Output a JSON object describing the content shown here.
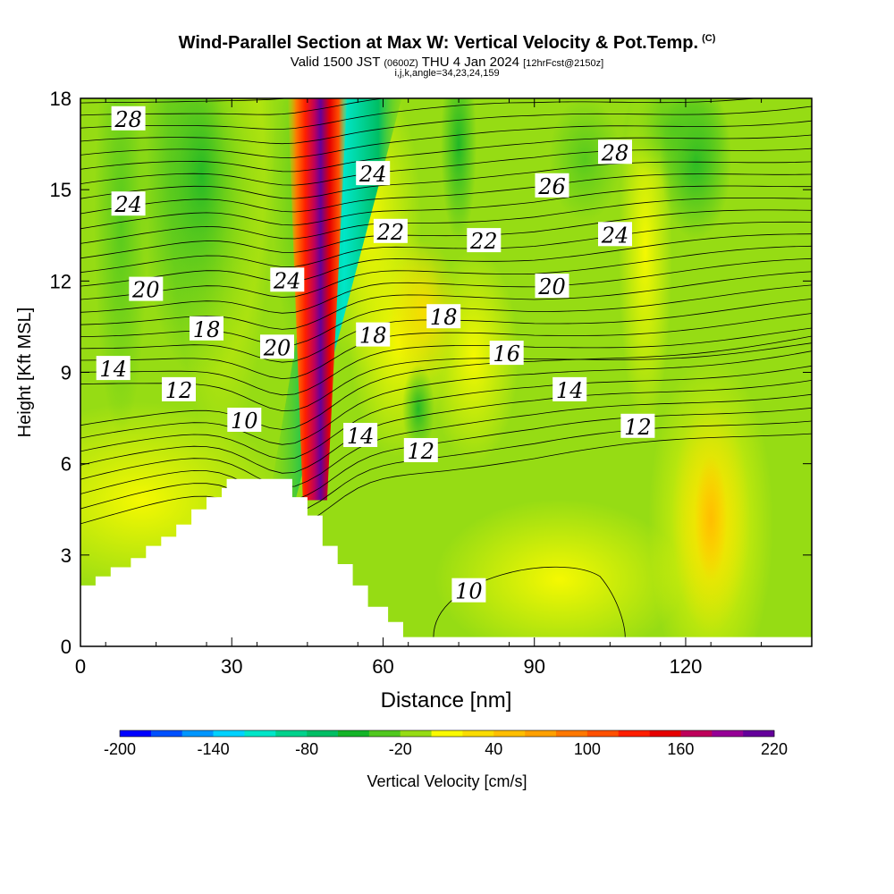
{
  "title": {
    "main": "Wind-Parallel Section at Max W: Vertical Velocity & Pot.Temp.",
    "copyright": "(C)",
    "valid_prefix": "Valid 1500 JST",
    "valid_utc": "(0600Z)",
    "valid_date": "THU 4 Jan 2024",
    "forecast": "[12hrFcst@2150z]",
    "indices": "i,j,k,angle=34,23,24,159"
  },
  "chart_data": {
    "type": "heatmap",
    "xlabel": "Distance [nm]",
    "ylabel": "Height [Kft MSL]",
    "xlim": [
      0,
      145
    ],
    "ylim": [
      0,
      18
    ],
    "xticks": [
      0,
      30,
      60,
      90,
      120
    ],
    "yticks": [
      0,
      3,
      6,
      9,
      12,
      15,
      18
    ],
    "colorbar": {
      "label": "Vertical Velocity [cm/s]",
      "min": -200,
      "max": 220,
      "step": 20,
      "tick_values": [
        -200,
        -140,
        -80,
        -20,
        40,
        100,
        160,
        220
      ],
      "colors": [
        "#0000ff",
        "#0050ff",
        "#0096ff",
        "#00d2ff",
        "#00e6c8",
        "#00d28c",
        "#00be64",
        "#14b428",
        "#50c81e",
        "#96dc14",
        "#fafa00",
        "#fadc00",
        "#ffbe00",
        "#ffa000",
        "#ff7800",
        "#ff5000",
        "#ff1e00",
        "#e60000",
        "#be005a",
        "#960096",
        "#64009b"
      ]
    },
    "terrain_profile": [
      [
        0,
        2
      ],
      [
        3,
        2
      ],
      [
        3,
        2.3
      ],
      [
        6,
        2.3
      ],
      [
        6,
        2.6
      ],
      [
        10,
        2.6
      ],
      [
        10,
        2.9
      ],
      [
        13,
        2.9
      ],
      [
        13,
        3.3
      ],
      [
        16,
        3.3
      ],
      [
        16,
        3.6
      ],
      [
        19,
        3.6
      ],
      [
        19,
        4.0
      ],
      [
        22,
        4.0
      ],
      [
        22,
        4.5
      ],
      [
        25,
        4.5
      ],
      [
        25,
        4.9
      ],
      [
        28,
        4.9
      ],
      [
        28,
        5.2
      ],
      [
        29,
        5.2
      ],
      [
        29,
        5.5
      ],
      [
        42,
        5.5
      ],
      [
        42,
        4.9
      ],
      [
        45,
        4.9
      ],
      [
        45,
        4.3
      ],
      [
        48,
        4.3
      ],
      [
        48,
        3.3
      ],
      [
        51,
        3.3
      ],
      [
        51,
        2.7
      ],
      [
        54,
        2.7
      ],
      [
        54,
        2.0
      ],
      [
        57,
        2.0
      ],
      [
        57,
        1.3
      ],
      [
        61,
        1.3
      ],
      [
        61,
        0.8
      ],
      [
        64,
        0.8
      ],
      [
        64,
        0.3
      ],
      [
        145,
        0.3
      ]
    ],
    "theta_contour_labels": [
      {
        "text": "28",
        "x": 9.5,
        "y": 17.3
      },
      {
        "text": "24",
        "x": 9.5,
        "y": 14.5
      },
      {
        "text": "20",
        "x": 13,
        "y": 11.7
      },
      {
        "text": "18",
        "x": 25,
        "y": 10.4
      },
      {
        "text": "14",
        "x": 6.5,
        "y": 9.1
      },
      {
        "text": "12",
        "x": 19.5,
        "y": 8.4
      },
      {
        "text": "10",
        "x": 32.5,
        "y": 7.4
      },
      {
        "text": "24",
        "x": 41,
        "y": 12.0
      },
      {
        "text": "20",
        "x": 39,
        "y": 9.8
      },
      {
        "text": "24",
        "x": 58,
        "y": 15.5
      },
      {
        "text": "22",
        "x": 61.5,
        "y": 13.6
      },
      {
        "text": "18",
        "x": 58,
        "y": 10.2
      },
      {
        "text": "14",
        "x": 55.5,
        "y": 6.9
      },
      {
        "text": "12",
        "x": 67.5,
        "y": 6.4
      },
      {
        "text": "22",
        "x": 80,
        "y": 13.3
      },
      {
        "text": "18",
        "x": 72,
        "y": 10.8
      },
      {
        "text": "16",
        "x": 84.5,
        "y": 9.6
      },
      {
        "text": "14",
        "x": 97,
        "y": 8.4
      },
      {
        "text": "10",
        "x": 77,
        "y": 1.8
      },
      {
        "text": "26",
        "x": 93.5,
        "y": 15.1
      },
      {
        "text": "20",
        "x": 93.5,
        "y": 11.8
      },
      {
        "text": "28",
        "x": 106,
        "y": 16.2
      },
      {
        "text": "24",
        "x": 106,
        "y": 13.5
      },
      {
        "text": "12",
        "x": 110.5,
        "y": 7.2
      }
    ]
  }
}
